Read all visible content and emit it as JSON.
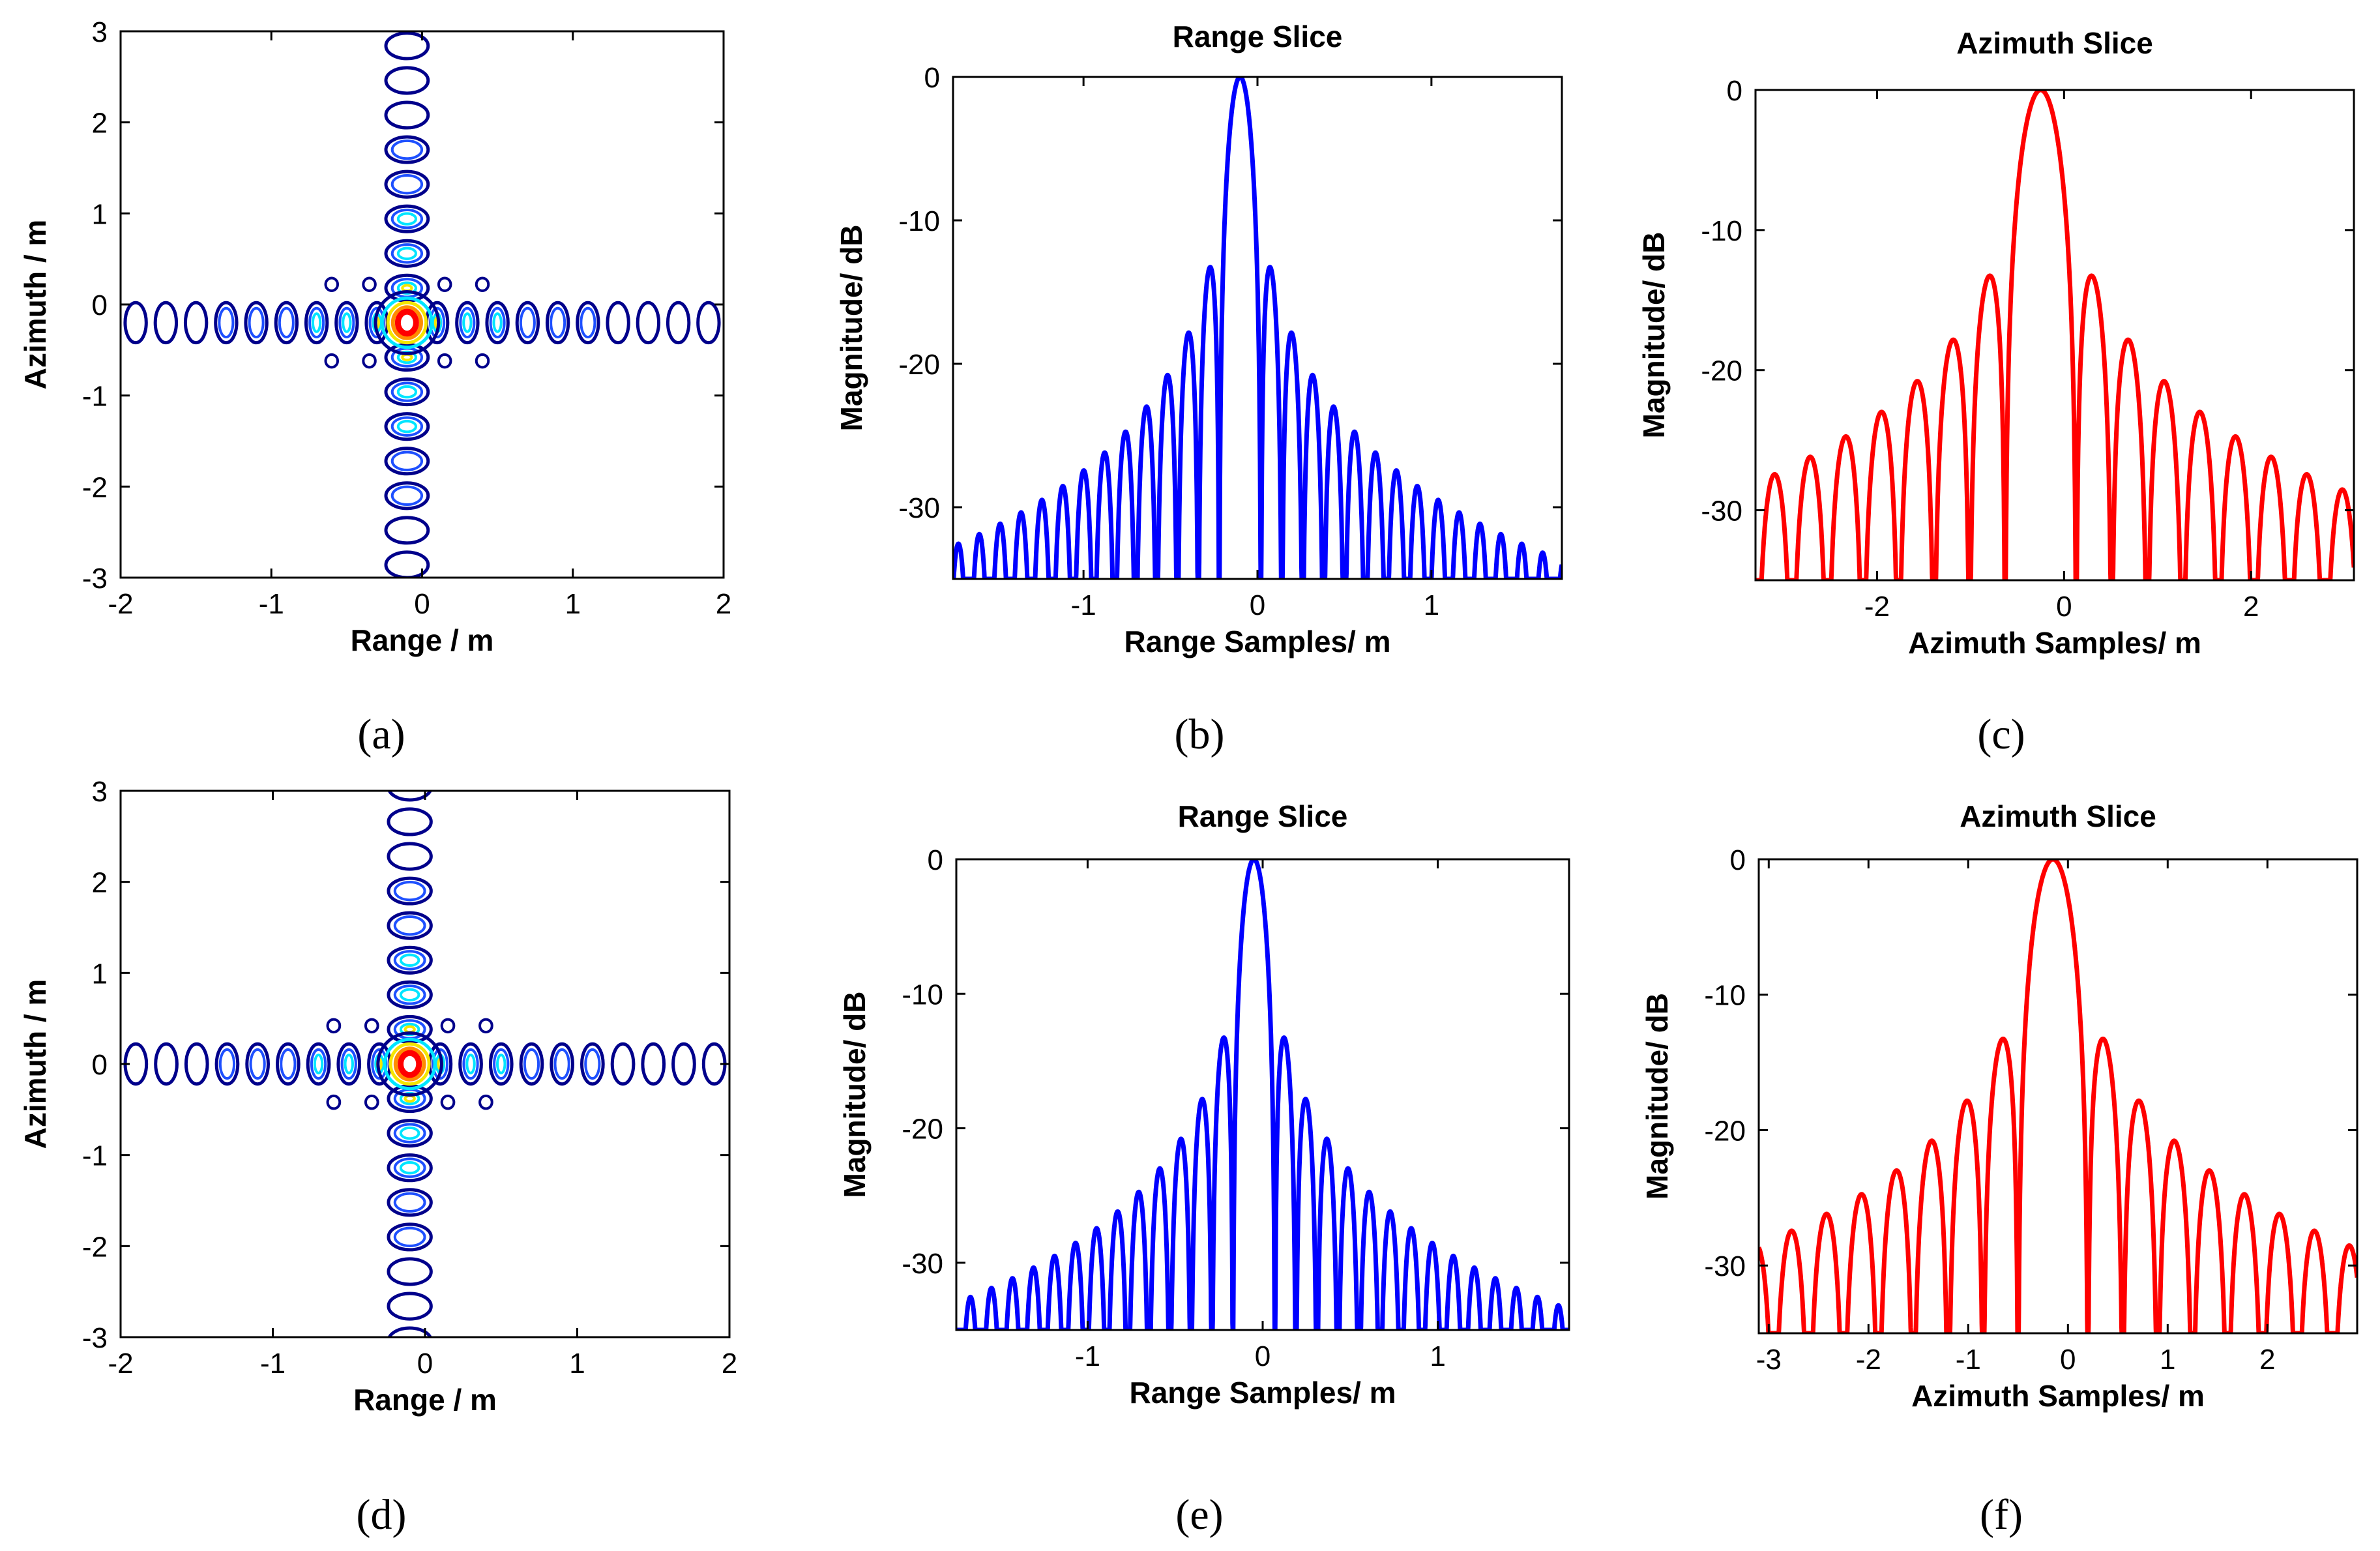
{
  "colors": {
    "range_line": "#0000ff",
    "azimuth_line": "#ff0000",
    "contour_outer": "#00008b",
    "contour_blue": "#1e50ff",
    "contour_cyan": "#00e5ff",
    "contour_yellow": "#f5e600",
    "contour_orange": "#ff8c00",
    "contour_red": "#ff0000"
  },
  "chart_data": [
    {
      "id": "a",
      "type": "contour",
      "caption": "(a)",
      "xlabel": "Range / m",
      "ylabel": "Azimuth / m",
      "xlim": [
        -2,
        2
      ],
      "ylim": [
        -3,
        3
      ],
      "xticks": [
        "-2",
        "-1",
        "0",
        "1",
        "2"
      ],
      "yticks": [
        "-3",
        "-2",
        "-1",
        "0",
        "1",
        "2",
        "3"
      ],
      "peak": {
        "x": -0.1,
        "y": -0.2
      }
    },
    {
      "id": "b",
      "type": "line",
      "caption": "(b)",
      "title": "Range Slice",
      "xlabel": "Range Samples/ m",
      "ylabel": "Magnitude/ dB",
      "xlim": [
        -1.75,
        1.75
      ],
      "ylim": [
        -35,
        0
      ],
      "xticks": [
        "-1",
        "0",
        "1"
      ],
      "yticks": [
        "0",
        "-10",
        "-20",
        "-30"
      ],
      "series": [
        {
          "name": "Range Slice",
          "color": "#0000ff",
          "peak_x": -0.1,
          "lobe_spacing": 0.12,
          "floor_db": -35
        }
      ]
    },
    {
      "id": "c",
      "type": "line",
      "caption": "(c)",
      "title": "Azimuth Slice",
      "xlabel": "Azimuth Samples/ m",
      "ylabel": "Magnitude/ dB",
      "xlim": [
        -3.3,
        3.1
      ],
      "ylim": [
        -35,
        0
      ],
      "xticks": [
        "-2",
        "0",
        "2"
      ],
      "yticks": [
        "0",
        "-10",
        "-20",
        "-30"
      ],
      "series": [
        {
          "name": "Azimuth Slice",
          "color": "#ff0000",
          "peak_x": -0.25,
          "lobe_spacing": 0.38,
          "floor_db": -35
        }
      ]
    },
    {
      "id": "d",
      "type": "contour",
      "caption": "(d)",
      "xlabel": "Range / m",
      "ylabel": "Azimuth / m",
      "xlim": [
        -2,
        2
      ],
      "ylim": [
        -3,
        3
      ],
      "xticks": [
        "-2",
        "-1",
        "0",
        "1",
        "2"
      ],
      "yticks": [
        "-3",
        "-2",
        "-1",
        "0",
        "1",
        "2",
        "3"
      ],
      "peak": {
        "x": -0.1,
        "y": 0.0
      }
    },
    {
      "id": "e",
      "type": "line",
      "caption": "(e)",
      "title": "Range Slice",
      "xlabel": "Range Samples/ m",
      "ylabel": "Magnitude/ dB",
      "xlim": [
        -1.75,
        1.75
      ],
      "ylim": [
        -35,
        0
      ],
      "xticks": [
        "-1",
        "0",
        "1"
      ],
      "yticks": [
        "0",
        "-10",
        "-20",
        "-30"
      ],
      "series": [
        {
          "name": "Range Slice",
          "color": "#0000ff",
          "peak_x": -0.05,
          "lobe_spacing": 0.12,
          "floor_db": -35
        }
      ]
    },
    {
      "id": "f",
      "type": "line",
      "caption": "(f)",
      "title": "Azimuth Slice",
      "xlabel": "Azimuth Samples/ m",
      "ylabel": "Magnitude/ dB",
      "xlim": [
        -3.1,
        2.9
      ],
      "ylim": [
        -35,
        0
      ],
      "xticks": [
        "-3",
        "-2",
        "-1",
        "0",
        "1",
        "2"
      ],
      "yticks": [
        "0",
        "-10",
        "-20",
        "-30"
      ],
      "series": [
        {
          "name": "Azimuth Slice",
          "color": "#ff0000",
          "peak_x": -0.15,
          "lobe_spacing": 0.35,
          "floor_db": -35
        }
      ]
    }
  ]
}
